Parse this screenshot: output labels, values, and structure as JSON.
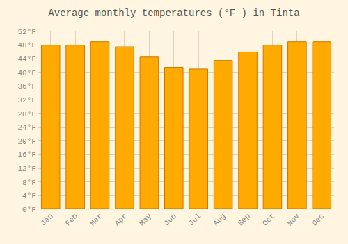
{
  "chart_data": {
    "type": "bar",
    "title": "Average monthly temperatures (°F ) in Tinta",
    "categories": [
      "Jan",
      "Feb",
      "Mar",
      "Apr",
      "May",
      "Jun",
      "Jul",
      "Aug",
      "Sep",
      "Oct",
      "Nov",
      "Dec"
    ],
    "values": [
      48.0,
      48.0,
      49.0,
      47.5,
      44.5,
      41.5,
      41.0,
      43.5,
      46.0,
      48.0,
      49.0,
      49.0
    ],
    "color": "#FFAA00",
    "ylim": [
      0,
      52
    ],
    "yticks": [
      {
        "value": 0,
        "label": "0°F"
      },
      {
        "value": 4,
        "label": "4°F"
      },
      {
        "value": 8,
        "label": "8°F"
      },
      {
        "value": 12,
        "label": "12°F"
      },
      {
        "value": 16,
        "label": "16°F"
      },
      {
        "value": 20,
        "label": "20°F"
      },
      {
        "value": 24,
        "label": "24°F"
      },
      {
        "value": 28,
        "label": "28°F"
      },
      {
        "value": 32,
        "label": "32°F"
      },
      {
        "value": 36,
        "label": "36°F"
      },
      {
        "value": 40,
        "label": "40°F"
      },
      {
        "value": 44,
        "label": "44°F"
      },
      {
        "value": 48,
        "label": "48°F"
      },
      {
        "value": 52,
        "label": "52°F"
      }
    ],
    "grid": true
  }
}
